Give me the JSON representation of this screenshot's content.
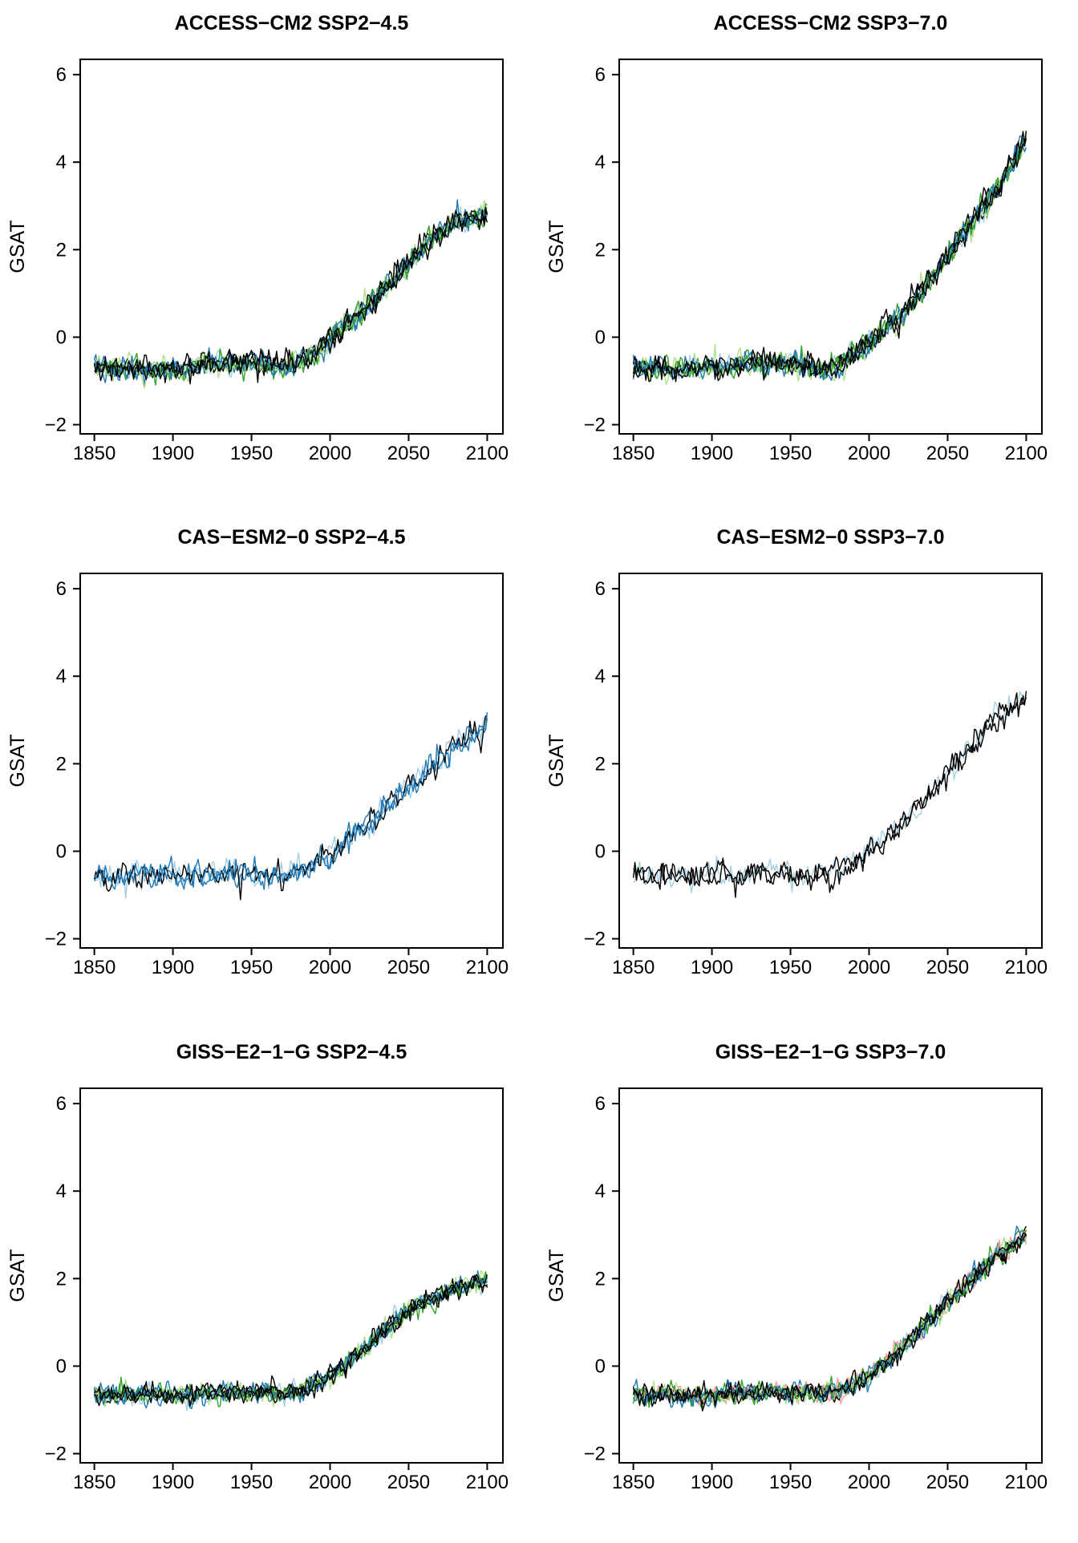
{
  "figure": {
    "rows": 3,
    "cols": 2,
    "background": "#ffffff",
    "line_colors": {
      "black": "#000000",
      "dark_blue": "#1F78B4",
      "light_blue": "#A6CEE3",
      "dark_green": "#33A02C",
      "light_green": "#B2DF8A",
      "salmon": "#FB9A99"
    }
  },
  "chart_data": [
    {
      "type": "line",
      "title": "ACCESS−CM2 SSP2−4.5",
      "model": "ACCESS-CM2",
      "scenario": "SSP2-4.5",
      "xlabel": "",
      "ylabel": "GSAT",
      "x_ticks": [
        1850,
        1900,
        1950,
        2000,
        2050,
        2100
      ],
      "x_tick_labels": [
        "1850",
        "1900",
        "1950",
        "2000",
        "2050",
        "2100"
      ],
      "y_ticks": [
        -2,
        0,
        2,
        4,
        6
      ],
      "y_tick_labels": [
        "−2",
        "0",
        "2",
        "4",
        "6"
      ],
      "xlim": [
        1841,
        2110
      ],
      "ylim": [
        -2.21,
        6.35
      ],
      "x_range": [
        1850,
        2100
      ],
      "grid": false,
      "legend": "none",
      "mean_trajectory": {
        "years": [
          1850,
          1860,
          1870,
          1880,
          1890,
          1900,
          1910,
          1920,
          1930,
          1940,
          1950,
          1960,
          1970,
          1980,
          1990,
          2000,
          2010,
          2020,
          2030,
          2040,
          2050,
          2060,
          2070,
          2080,
          2090,
          2100
        ],
        "values": [
          -0.7,
          -0.72,
          -0.68,
          -0.78,
          -0.7,
          -0.72,
          -0.7,
          -0.62,
          -0.6,
          -0.62,
          -0.58,
          -0.65,
          -0.7,
          -0.62,
          -0.4,
          -0.05,
          0.25,
          0.55,
          0.92,
          1.32,
          1.7,
          2.1,
          2.42,
          2.6,
          2.72,
          2.85
        ]
      },
      "noise_sd": 0.13,
      "noise_ar1": 0.35,
      "members": [
        "#B2DF8A",
        "#A6CEE3",
        "#33A02C",
        "#1F78B4",
        "#000000",
        "#B2DF8A",
        "#33A02C",
        "#1F78B4",
        "#000000",
        "#000000"
      ]
    },
    {
      "type": "line",
      "title": "ACCESS−CM2 SSP3−7.0",
      "model": "ACCESS-CM2",
      "scenario": "SSP3-7.0",
      "xlabel": "",
      "ylabel": "GSAT",
      "x_ticks": [
        1850,
        1900,
        1950,
        2000,
        2050,
        2100
      ],
      "x_tick_labels": [
        "1850",
        "1900",
        "1950",
        "2000",
        "2050",
        "2100"
      ],
      "y_ticks": [
        -2,
        0,
        2,
        4,
        6
      ],
      "y_tick_labels": [
        "−2",
        "0",
        "2",
        "4",
        "6"
      ],
      "xlim": [
        1841,
        2110
      ],
      "ylim": [
        -2.21,
        6.35
      ],
      "x_range": [
        1850,
        2100
      ],
      "grid": false,
      "legend": "none",
      "mean_trajectory": {
        "years": [
          1850,
          1860,
          1870,
          1880,
          1890,
          1900,
          1910,
          1920,
          1930,
          1940,
          1950,
          1960,
          1970,
          1980,
          1990,
          2000,
          2010,
          2020,
          2030,
          2040,
          2050,
          2060,
          2070,
          2080,
          2090,
          2100
        ],
        "values": [
          -0.7,
          -0.72,
          -0.68,
          -0.78,
          -0.7,
          -0.72,
          -0.7,
          -0.62,
          -0.6,
          -0.62,
          -0.58,
          -0.65,
          -0.7,
          -0.62,
          -0.42,
          -0.1,
          0.18,
          0.5,
          0.9,
          1.35,
          1.85,
          2.35,
          2.85,
          3.35,
          3.9,
          4.55
        ]
      },
      "noise_sd": 0.13,
      "noise_ar1": 0.35,
      "members": [
        "#B2DF8A",
        "#A6CEE3",
        "#33A02C",
        "#1F78B4",
        "#000000",
        "#B2DF8A",
        "#33A02C",
        "#1F78B4",
        "#000000",
        "#000000"
      ]
    },
    {
      "type": "line",
      "title": "CAS−ESM2−0 SSP2−4.5",
      "model": "CAS-ESM2-0",
      "scenario": "SSP2-4.5",
      "xlabel": "",
      "ylabel": "GSAT",
      "x_ticks": [
        1850,
        1900,
        1950,
        2000,
        2050,
        2100
      ],
      "x_tick_labels": [
        "1850",
        "1900",
        "1950",
        "2000",
        "2050",
        "2100"
      ],
      "y_ticks": [
        -2,
        0,
        2,
        4,
        6
      ],
      "y_tick_labels": [
        "−2",
        "0",
        "2",
        "4",
        "6"
      ],
      "xlim": [
        1841,
        2110
      ],
      "ylim": [
        -2.21,
        6.35
      ],
      "x_range": [
        1850,
        2100
      ],
      "grid": false,
      "legend": "none",
      "mean_trajectory": {
        "years": [
          1850,
          1860,
          1870,
          1880,
          1890,
          1900,
          1910,
          1920,
          1930,
          1940,
          1950,
          1960,
          1970,
          1980,
          1990,
          2000,
          2010,
          2020,
          2030,
          2040,
          2050,
          2060,
          2070,
          2080,
          2090,
          2100
        ],
        "values": [
          -0.55,
          -0.58,
          -0.52,
          -0.6,
          -0.55,
          -0.52,
          -0.56,
          -0.5,
          -0.48,
          -0.52,
          -0.5,
          -0.55,
          -0.52,
          -0.45,
          -0.28,
          -0.05,
          0.22,
          0.5,
          0.82,
          1.15,
          1.48,
          1.8,
          2.1,
          2.38,
          2.62,
          2.9
        ]
      },
      "noise_sd": 0.15,
      "noise_ar1": 0.35,
      "members": [
        "#A6CEE3",
        "#1F78B4",
        "#000000",
        "#1F78B4"
      ]
    },
    {
      "type": "line",
      "title": "CAS−ESM2−0 SSP3−7.0",
      "model": "CAS-ESM2-0",
      "scenario": "SSP3-7.0",
      "xlabel": "",
      "ylabel": "GSAT",
      "x_ticks": [
        1850,
        1900,
        1950,
        2000,
        2050,
        2100
      ],
      "x_tick_labels": [
        "1850",
        "1900",
        "1950",
        "2000",
        "2050",
        "2100"
      ],
      "y_ticks": [
        -2,
        0,
        2,
        4,
        6
      ],
      "y_tick_labels": [
        "−2",
        "0",
        "2",
        "4",
        "6"
      ],
      "xlim": [
        1841,
        2110
      ],
      "ylim": [
        -2.21,
        6.35
      ],
      "x_range": [
        1850,
        2100
      ],
      "grid": false,
      "legend": "none",
      "mean_trajectory": {
        "years": [
          1850,
          1860,
          1870,
          1880,
          1890,
          1900,
          1910,
          1920,
          1930,
          1940,
          1950,
          1960,
          1970,
          1980,
          1990,
          2000,
          2010,
          2020,
          2030,
          2040,
          2050,
          2060,
          2070,
          2080,
          2090,
          2100
        ],
        "values": [
          -0.55,
          -0.58,
          -0.52,
          -0.6,
          -0.55,
          -0.52,
          -0.56,
          -0.5,
          -0.48,
          -0.52,
          -0.5,
          -0.55,
          -0.52,
          -0.45,
          -0.28,
          -0.02,
          0.25,
          0.58,
          0.95,
          1.32,
          1.75,
          2.18,
          2.6,
          3.0,
          3.32,
          3.6
        ]
      },
      "noise_sd": 0.15,
      "noise_ar1": 0.35,
      "members": [
        "#A6CEE3",
        "#000000",
        "#000000"
      ]
    },
    {
      "type": "line",
      "title": "GISS−E2−1−G SSP2−4.5",
      "model": "GISS-E2-1-G",
      "scenario": "SSP2-4.5",
      "xlabel": "",
      "ylabel": "GSAT",
      "x_ticks": [
        1850,
        1900,
        1950,
        2000,
        2050,
        2100
      ],
      "x_tick_labels": [
        "1850",
        "1900",
        "1950",
        "2000",
        "2050",
        "2100"
      ],
      "y_ticks": [
        -2,
        0,
        2,
        4,
        6
      ],
      "y_tick_labels": [
        "−2",
        "0",
        "2",
        "4",
        "6"
      ],
      "xlim": [
        1841,
        2110
      ],
      "ylim": [
        -2.21,
        6.35
      ],
      "x_range": [
        1850,
        2100
      ],
      "grid": false,
      "legend": "none",
      "mean_trajectory": {
        "years": [
          1850,
          1860,
          1870,
          1880,
          1890,
          1900,
          1910,
          1920,
          1930,
          1940,
          1950,
          1960,
          1970,
          1980,
          1990,
          2000,
          2010,
          2020,
          2030,
          2040,
          2050,
          2060,
          2070,
          2080,
          2090,
          2100
        ],
        "values": [
          -0.65,
          -0.68,
          -0.62,
          -0.7,
          -0.66,
          -0.68,
          -0.64,
          -0.62,
          -0.6,
          -0.58,
          -0.62,
          -0.6,
          -0.63,
          -0.58,
          -0.42,
          -0.22,
          0.02,
          0.32,
          0.65,
          0.98,
          1.28,
          1.48,
          1.6,
          1.75,
          1.85,
          1.95
        ]
      },
      "noise_sd": 0.11,
      "noise_ar1": 0.35,
      "members": [
        "#B2DF8A",
        "#A6CEE3",
        "#33A02C",
        "#1F78B4",
        "#000000",
        "#B2DF8A",
        "#33A02C",
        "#1F78B4",
        "#000000",
        "#000000"
      ]
    },
    {
      "type": "line",
      "title": "GISS−E2−1−G SSP3−7.0",
      "model": "GISS-E2-1-G",
      "scenario": "SSP3-7.0",
      "xlabel": "",
      "ylabel": "GSAT",
      "x_ticks": [
        1850,
        1900,
        1950,
        2000,
        2050,
        2100
      ],
      "x_tick_labels": [
        "1850",
        "1900",
        "1950",
        "2000",
        "2050",
        "2100"
      ],
      "y_ticks": [
        -2,
        0,
        2,
        4,
        6
      ],
      "y_tick_labels": [
        "−2",
        "0",
        "2",
        "4",
        "6"
      ],
      "xlim": [
        1841,
        2110
      ],
      "ylim": [
        -2.21,
        6.35
      ],
      "x_range": [
        1850,
        2100
      ],
      "grid": false,
      "legend": "none",
      "mean_trajectory": {
        "years": [
          1850,
          1860,
          1870,
          1880,
          1890,
          1900,
          1910,
          1920,
          1930,
          1940,
          1950,
          1960,
          1970,
          1980,
          1990,
          2000,
          2010,
          2020,
          2030,
          2040,
          2050,
          2060,
          2070,
          2080,
          2090,
          2100
        ],
        "values": [
          -0.65,
          -0.68,
          -0.62,
          -0.7,
          -0.66,
          -0.68,
          -0.64,
          -0.62,
          -0.6,
          -0.58,
          -0.62,
          -0.6,
          -0.63,
          -0.58,
          -0.42,
          -0.22,
          0.05,
          0.38,
          0.72,
          1.08,
          1.45,
          1.82,
          2.15,
          2.48,
          2.75,
          3.0
        ]
      },
      "noise_sd": 0.11,
      "noise_ar1": 0.35,
      "members": [
        "#FB9A99",
        "#B2DF8A",
        "#A6CEE3",
        "#33A02C",
        "#1F78B4",
        "#000000",
        "#FB9A99",
        "#B2DF8A",
        "#33A02C",
        "#1F78B4",
        "#000000",
        "#000000"
      ]
    }
  ]
}
